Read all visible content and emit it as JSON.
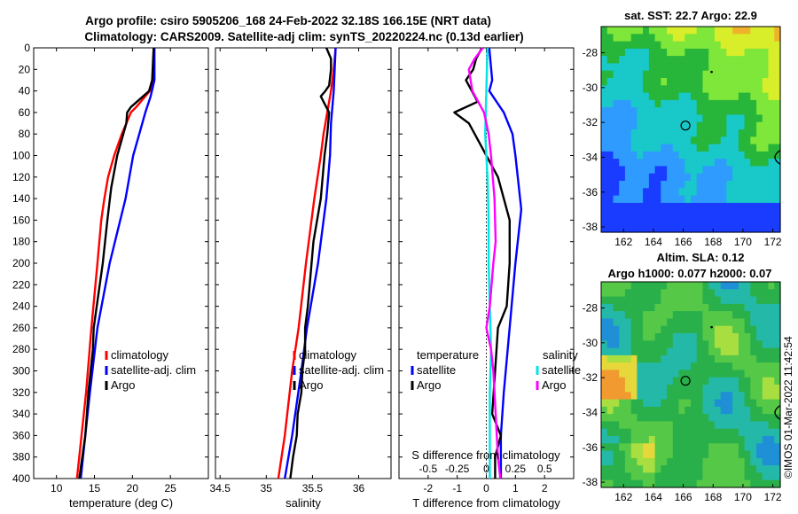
{
  "title_line1": "Argo profile: csiro 5905206_168 24-Feb-2022 32.18S 166.15E (NRT data)",
  "title_line2": "Climatology: CARS2009. Satellite-adj clim: synTS_20220224.nc (0.13d earlier)",
  "watermark": "©IMOS 01-Mar-2022 11:42:54",
  "colors": {
    "clim": "#ff0000",
    "sat": "#0000ff",
    "argo": "#000000",
    "sat_s": "#00e5e5",
    "argo_s": "#ff00ff"
  },
  "chart_data": [
    {
      "type": "line",
      "id": "temperature_profile",
      "xlabel": "temperature (deg C)",
      "ylabel": "",
      "xlim": [
        7,
        30
      ],
      "ylim": [
        400,
        0
      ],
      "xticks": [
        10,
        15,
        20,
        25
      ],
      "yticks": [
        0,
        20,
        40,
        60,
        80,
        100,
        120,
        140,
        160,
        180,
        200,
        220,
        240,
        260,
        280,
        300,
        320,
        340,
        360,
        380,
        400
      ],
      "legend": [
        "climatology",
        "satellite-adj. clim",
        "Argo"
      ],
      "series": [
        {
          "name": "climatology",
          "depth": [
            0,
            30,
            40,
            55,
            60,
            70,
            80,
            100,
            120,
            140,
            160,
            200,
            260,
            320,
            400
          ],
          "values": [
            22.8,
            22.7,
            22.3,
            20.5,
            19.8,
            19.2,
            18.6,
            17.6,
            16.8,
            16.3,
            15.9,
            15.4,
            14.6,
            13.9,
            12.7
          ]
        },
        {
          "name": "satellite-adj. clim",
          "depth": [
            0,
            30,
            45,
            60,
            80,
            100,
            140,
            200,
            260,
            320,
            360,
            400
          ],
          "values": [
            22.9,
            22.9,
            22.4,
            21.7,
            20.9,
            20.1,
            19.1,
            17.0,
            15.4,
            14.4,
            13.8,
            13.2
          ]
        },
        {
          "name": "Argo",
          "depth": [
            0,
            30,
            40,
            55,
            60,
            70,
            80,
            100,
            130,
            160,
            200,
            240,
            260,
            280,
            320,
            360,
            380,
            400
          ],
          "values": [
            22.8,
            22.6,
            22.2,
            19.8,
            19.3,
            19.2,
            18.8,
            18.0,
            17.2,
            16.7,
            16.1,
            15.3,
            14.9,
            14.8,
            14.2,
            13.8,
            13.4,
            13.0
          ]
        }
      ]
    },
    {
      "type": "line",
      "id": "salinity_profile",
      "xlabel": "salinity",
      "ylabel": "",
      "xlim": [
        34.45,
        36.35
      ],
      "ylim": [
        400,
        0
      ],
      "xticks": [
        34.5,
        35,
        35.5,
        36
      ],
      "legend": [
        "climatology",
        "satellite-adj. clim",
        "Argo"
      ],
      "series": [
        {
          "name": "climatology",
          "depth": [
            0,
            20,
            40,
            60,
            80,
            100,
            140,
            200,
            260,
            300,
            360,
            400
          ],
          "values": [
            35.75,
            35.73,
            35.7,
            35.66,
            35.62,
            35.59,
            35.52,
            35.43,
            35.35,
            35.28,
            35.2,
            35.13
          ]
        },
        {
          "name": "satellite-adj. clim",
          "depth": [
            0,
            40,
            70,
            100,
            140,
            200,
            260,
            300,
            360,
            400
          ],
          "values": [
            35.75,
            35.73,
            35.7,
            35.69,
            35.65,
            35.56,
            35.44,
            35.38,
            35.28,
            35.2
          ]
        },
        {
          "name": "Argo",
          "depth": [
            0,
            10,
            20,
            35,
            40,
            45,
            50,
            60,
            80,
            100,
            140,
            180,
            200,
            240,
            260,
            280,
            300,
            320,
            340,
            360,
            380,
            400
          ],
          "values": [
            35.65,
            35.7,
            35.7,
            35.68,
            35.64,
            35.59,
            35.62,
            35.68,
            35.66,
            35.63,
            35.59,
            35.51,
            35.49,
            35.45,
            35.42,
            35.42,
            35.39,
            35.38,
            35.34,
            35.33,
            35.29,
            35.26
          ]
        }
      ]
    },
    {
      "type": "line",
      "id": "difference_profile",
      "xlabel": "T difference from climatology",
      "xlabel2": "S difference from climatology",
      "xlim": [
        -3,
        3
      ],
      "ylim": [
        400,
        0
      ],
      "xticks": [
        -2,
        -1,
        0,
        1,
        2
      ],
      "top_ticks": [
        "-0.5",
        "-0.25",
        "0",
        "0.25",
        "0.5"
      ],
      "legend_title_t": "temperature",
      "legend_title_s": "salinity",
      "legend": [
        "satellite",
        "Argo",
        "satellite",
        "Argo"
      ],
      "series": [
        {
          "name": "T satellite",
          "depth": [
            0,
            30,
            40,
            60,
            80,
            100,
            150,
            200,
            260,
            320,
            360,
            400
          ],
          "values": [
            0.1,
            0.2,
            0.1,
            0.6,
            0.9,
            1.0,
            1.2,
            1.0,
            0.8,
            0.6,
            0.5,
            0.5
          ]
        },
        {
          "name": "T Argo",
          "depth": [
            0,
            10,
            20,
            30,
            40,
            50,
            60,
            70,
            80,
            100,
            120,
            140,
            160,
            200,
            240,
            260,
            300,
            340,
            360,
            380,
            400
          ],
          "values": [
            -0.15,
            -0.35,
            -0.45,
            -0.7,
            -0.5,
            -0.3,
            -1.1,
            -0.6,
            -0.4,
            0.0,
            0.4,
            0.6,
            0.8,
            0.8,
            0.7,
            0.4,
            0.3,
            0.2,
            0.5,
            0.3,
            0.3
          ]
        },
        {
          "name": "S satellite",
          "depth": [
            0,
            40,
            80,
            120,
            160,
            200,
            240,
            280,
            320,
            360,
            400
          ],
          "values": [
            0.01,
            0.0,
            -0.01,
            0.01,
            0.02,
            0.02,
            0.03,
            0.04,
            0.03,
            0.03,
            0.03
          ]
        },
        {
          "name": "S Argo",
          "depth": [
            0,
            10,
            20,
            40,
            60,
            80,
            100,
            140,
            180,
            200,
            240,
            260,
            280,
            300,
            340,
            380,
            400
          ],
          "values": [
            -0.03,
            -0.1,
            -0.15,
            -0.12,
            -0.02,
            0.02,
            0.04,
            0.07,
            0.08,
            0.06,
            0.03,
            0.0,
            0.04,
            0.06,
            0.08,
            0.1,
            0.12
          ]
        }
      ]
    },
    {
      "type": "heatmap",
      "id": "sst_map",
      "title": "sat. SST: 22.7 Argo: 22.9",
      "xticks": [
        "162",
        "164",
        "166",
        "168",
        "170",
        "172"
      ],
      "yticks": [
        "-28",
        "-30",
        "-32",
        "-34",
        "-36",
        "-38"
      ],
      "xlim": [
        160.5,
        172.5
      ],
      "ylim": [
        -38.3,
        -26.5
      ],
      "marker": {
        "lon": 166.15,
        "lat": -32.18
      }
    },
    {
      "type": "heatmap",
      "id": "sla_map",
      "title_line1": "Altim. SLA: 0.12",
      "title_line2": "Argo h1000: 0.077 h2000: 0.07",
      "xticks": [
        "162",
        "164",
        "166",
        "168",
        "170",
        "172"
      ],
      "yticks": [
        "-28",
        "-30",
        "-32",
        "-34",
        "-36",
        "-38"
      ],
      "xlim": [
        160.5,
        172.5
      ],
      "ylim": [
        -38.3,
        -26.5
      ],
      "marker": {
        "lon": 166.15,
        "lat": -32.18
      }
    }
  ]
}
